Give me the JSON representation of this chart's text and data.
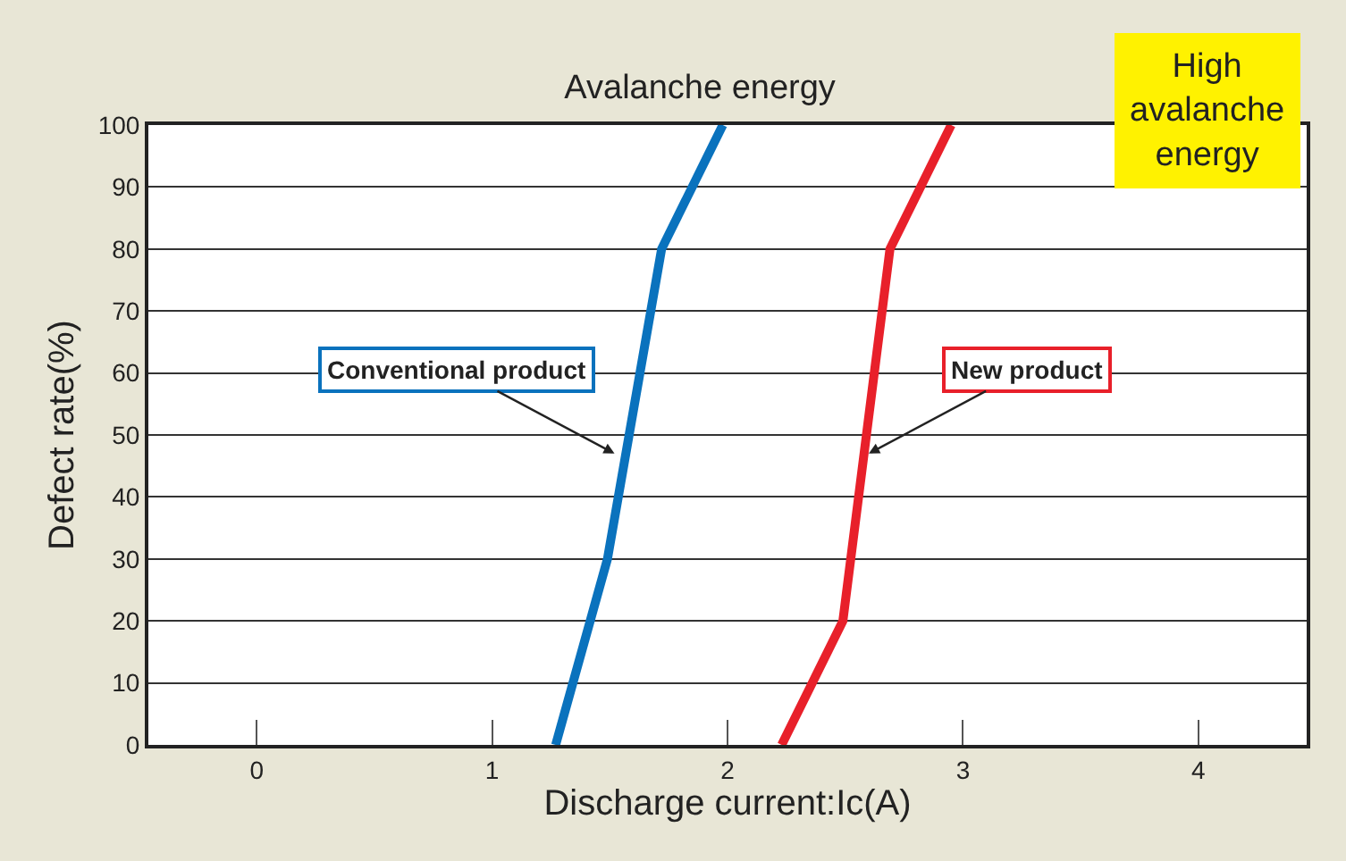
{
  "chart_data": {
    "type": "line",
    "title": "Avalanche energy",
    "xlabel": "Discharge current:Ic(A)",
    "ylabel": "Defect rate(%)",
    "series": [
      {
        "color": "#0a72bd",
        "x": [
          1.27,
          1.49,
          1.72,
          1.98
        ],
        "values": [
          0,
          30,
          80,
          100
        ]
      },
      {
        "color": "#e8202a",
        "x": [
          2.23,
          2.49,
          2.69,
          2.95
        ],
        "values": [
          0,
          20,
          80,
          100
        ]
      }
    ],
    "annotations": [
      {
        "text": "Conventional product",
        "x": 1.52,
        "y": 47
      },
      {
        "text": "New product",
        "x": 2.6,
        "y": 47
      },
      "High avalanche energy"
    ],
    "xlim": [
      -0.46,
      4.46
    ],
    "xticks": [
      0,
      1,
      2,
      3,
      4
    ],
    "ylim": [
      0,
      100
    ],
    "yticks": [
      0,
      10,
      20,
      30,
      40,
      50,
      60,
      70,
      80,
      90,
      100
    ],
    "grid": "y",
    "marker": "none",
    "line_style": "solid"
  }
}
